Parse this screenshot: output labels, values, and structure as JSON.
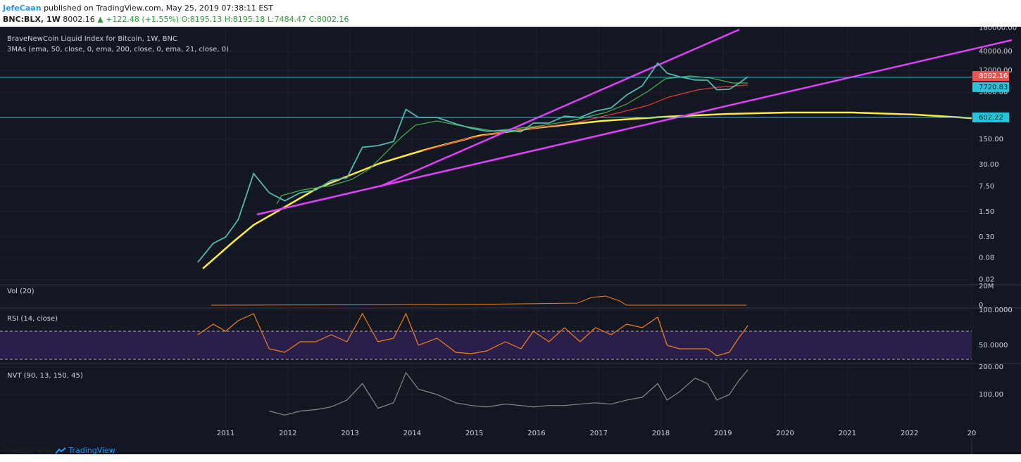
{
  "header": {
    "author": "JefeCaan",
    "published": "published on TradingView.com, May 25, 2019 07:38:11 EST",
    "symbol": "BNC:BLX, 1W",
    "last": "8002.16",
    "change": "▲ +122.48 (+1.55%)",
    "ohlc": "O:8195.13 H:8195.18 L:7484.47 C:8002.16"
  },
  "chart_data": [
    {
      "type": "line",
      "title": "BraveNewCoin Liquid Index for Bitcoin, 1W, BNC",
      "subtitle": "3MAs (ema, 50, close, 0, ema, 200, close, 0, ema, 21, close, 0)",
      "log_scale": true,
      "x": [
        2010.55,
        2010.8,
        2011.0,
        2011.2,
        2011.45,
        2011.7,
        2011.95,
        2012.2,
        2012.45,
        2012.7,
        2012.95,
        2013.2,
        2013.45,
        2013.7,
        2013.9,
        2014.1,
        2014.4,
        2014.7,
        2014.95,
        2015.2,
        2015.5,
        2015.75,
        2015.95,
        2016.2,
        2016.45,
        2016.7,
        2016.95,
        2017.2,
        2017.45,
        2017.7,
        2017.95,
        2018.1,
        2018.3,
        2018.55,
        2018.75,
        2018.9,
        2019.1,
        2019.25,
        2019.4
      ],
      "series": [
        {
          "color": "#53b9b0",
          "values": [
            0.06,
            0.2,
            0.3,
            0.9,
            17,
            5,
            3,
            5,
            6,
            11,
            13,
            90,
            100,
            130,
            1000,
            600,
            600,
            400,
            300,
            250,
            260,
            240,
            420,
            420,
            650,
            600,
            900,
            1100,
            2500,
            4500,
            19000,
            10000,
            8000,
            6500,
            6400,
            3500,
            3600,
            5200,
            8002.16
          ]
        }
      ],
      "last_price": 8002.16,
      "hlines": [
        7720.83,
        602.22
      ],
      "xlim": [
        2007.37,
        2023.0
      ],
      "xticks": [
        2011,
        2012,
        2013,
        2014,
        2015,
        2016,
        2017,
        2018,
        2019,
        2020,
        2021,
        2022,
        {
          "value": 2023,
          "label": "20"
        }
      ],
      "ylim": [
        0.0144,
        192000
      ],
      "yticks": [
        {
          "value": 180000,
          "label": "180000.00"
        },
        {
          "value": 40000,
          "label": "40000.00"
        },
        {
          "value": 12000,
          "label": "12000.00"
        },
        {
          "value": 3000,
          "label": "3000.00"
        },
        {
          "value": 150,
          "label": "150.00"
        },
        {
          "value": 30,
          "label": "30.00"
        },
        {
          "value": 7.5,
          "label": "7.50"
        },
        {
          "value": 1.5,
          "label": "1.50"
        },
        {
          "value": 0.3,
          "label": "0.30"
        },
        {
          "value": 0.08,
          "label": "0.08"
        },
        {
          "value": 0.02,
          "label": "0.02"
        }
      ]
    },
    {
      "type": "bar",
      "title": "Vol (20)",
      "ylim": [
        -1600000,
        21600000
      ],
      "yticks": [
        {
          "value": 20000000,
          "label": "20M"
        },
        0
      ]
    },
    {
      "type": "line",
      "title": "RSI (14, close)",
      "x": [
        2010.55,
        2010.8,
        2011.0,
        2011.2,
        2011.45,
        2011.7,
        2011.95,
        2012.2,
        2012.45,
        2012.7,
        2012.95,
        2013.2,
        2013.45,
        2013.7,
        2013.9,
        2014.1,
        2014.4,
        2014.7,
        2014.95,
        2015.2,
        2015.5,
        2015.75,
        2015.95,
        2016.2,
        2016.45,
        2016.7,
        2016.95,
        2017.2,
        2017.45,
        2017.7,
        2017.95,
        2018.1,
        2018.3,
        2018.55,
        2018.75,
        2018.9,
        2019.1,
        2019.25,
        2019.4
      ],
      "series": [
        {
          "color": "#f57f17",
          "values": [
            65,
            80,
            70,
            85,
            95,
            45,
            40,
            55,
            55,
            65,
            55,
            95,
            55,
            60,
            95,
            50,
            60,
            40,
            38,
            42,
            55,
            45,
            70,
            55,
            75,
            55,
            75,
            65,
            80,
            75,
            90,
            50,
            45,
            45,
            45,
            35,
            40,
            60,
            78
          ]
        }
      ],
      "band": [
        30,
        70
      ],
      "ylim": [
        26,
        103
      ],
      "yticks": [
        {
          "value": 100,
          "label": "100.0000"
        },
        {
          "value": 50,
          "label": "50.0000"
        }
      ]
    },
    {
      "type": "line",
      "title": "NVT (90, 13, 150, 45)",
      "x": [
        2010.55,
        2010.8,
        2011.0,
        2011.2,
        2011.45,
        2011.7,
        2011.95,
        2012.2,
        2012.45,
        2012.7,
        2012.95,
        2013.2,
        2013.45,
        2013.7,
        2013.9,
        2014.1,
        2014.4,
        2014.7,
        2014.95,
        2015.2,
        2015.5,
        2015.75,
        2015.95,
        2016.2,
        2016.45,
        2016.7,
        2016.95,
        2017.2,
        2017.45,
        2017.7,
        2017.95,
        2018.1,
        2018.3,
        2018.55,
        2018.75,
        2018.9,
        2019.1,
        2019.25,
        2019.4
      ],
      "series": [
        {
          "color": "#8a8a8a",
          "values": [
            null,
            null,
            null,
            null,
            null,
            40,
            25,
            40,
            45,
            55,
            80,
            140,
            50,
            70,
            180,
            120,
            100,
            70,
            60,
            55,
            65,
            60,
            55,
            60,
            60,
            65,
            70,
            65,
            80,
            90,
            140,
            80,
            110,
            160,
            140,
            80,
            100,
            150,
            190
          ]
        }
      ],
      "ylim": [
        -64,
        213
      ],
      "yticks": [
        {
          "value": 200,
          "label": "200.00"
        },
        {
          "value": 100,
          "label": "100.00"
        }
      ]
    }
  ],
  "footer": {
    "created": "Created with",
    "brand": "TradingView"
  }
}
